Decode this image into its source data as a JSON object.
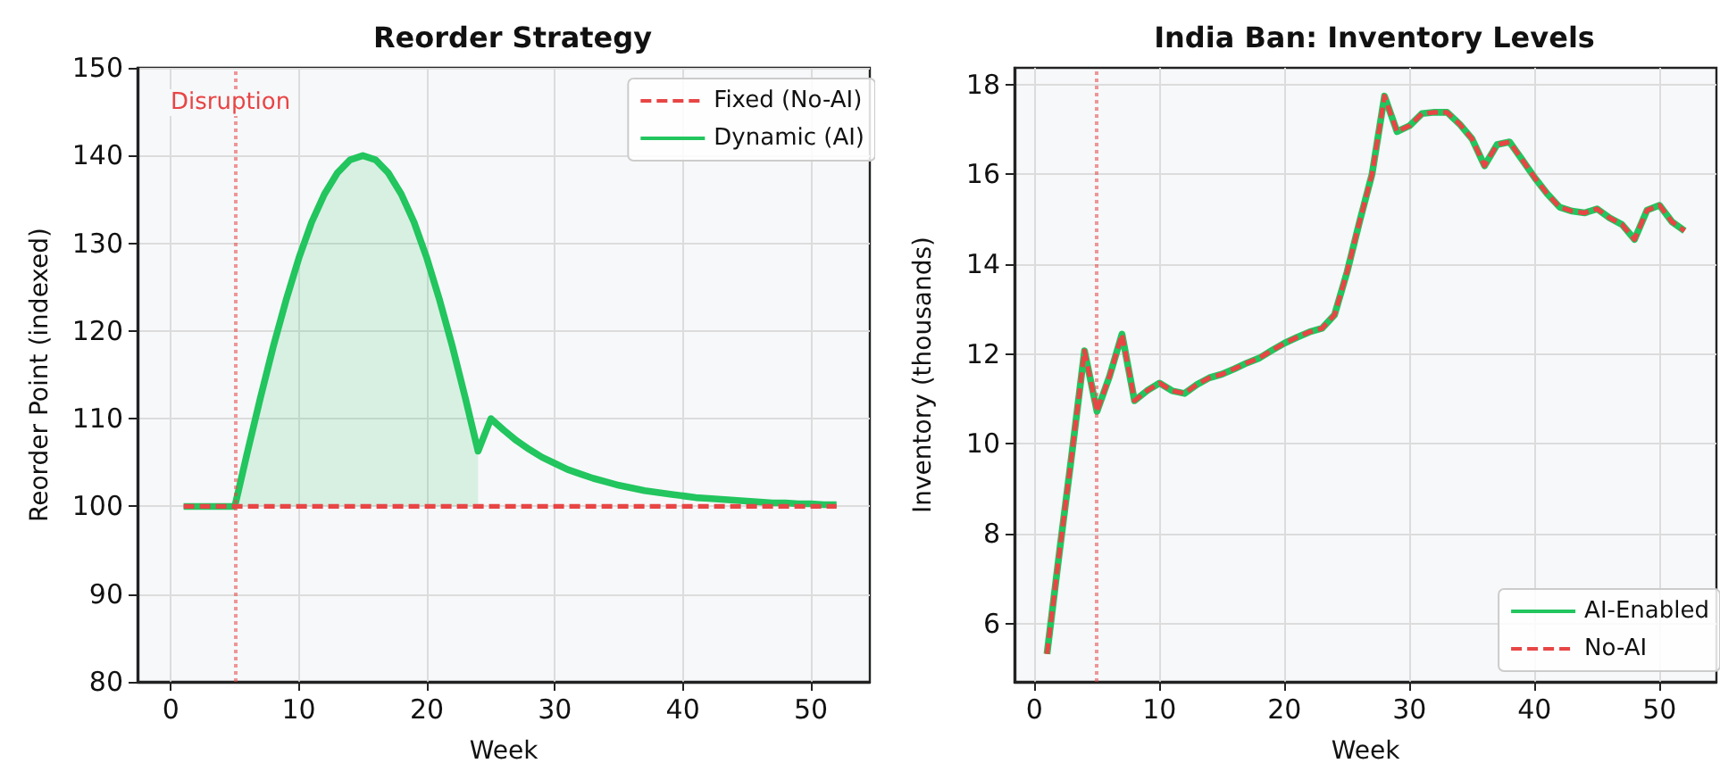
{
  "chart_data": [
    {
      "type": "line",
      "title": "Reorder Strategy",
      "xlabel": "Week",
      "ylabel": "Reorder Point (indexed)",
      "x": [
        1,
        2,
        3,
        4,
        5,
        6,
        7,
        8,
        9,
        10,
        11,
        12,
        13,
        14,
        15,
        16,
        17,
        18,
        19,
        20,
        21,
        22,
        23,
        24,
        25,
        26,
        27,
        28,
        29,
        30,
        31,
        32,
        33,
        34,
        35,
        36,
        37,
        38,
        39,
        40,
        41,
        42,
        43,
        44,
        45,
        46,
        47,
        48,
        49,
        50,
        51,
        52
      ],
      "series": [
        {
          "name": "Fixed (No-AI)",
          "color": "#e84545",
          "line_style": "dashed",
          "values": [
            100,
            100,
            100,
            100,
            100,
            100,
            100,
            100,
            100,
            100,
            100,
            100,
            100,
            100,
            100,
            100,
            100,
            100,
            100,
            100,
            100,
            100,
            100,
            100,
            100,
            100,
            100,
            100,
            100,
            100,
            100,
            100,
            100,
            100,
            100,
            100,
            100,
            100,
            100,
            100,
            100,
            100,
            100,
            100,
            100,
            100,
            100,
            100,
            100,
            100,
            100,
            100
          ]
        },
        {
          "name": "Dynamic (AI)",
          "color": "#22c55e",
          "line_style": "solid",
          "values": [
            100,
            100,
            100,
            100,
            100,
            106.3,
            112.4,
            118.2,
            123.5,
            128.3,
            132.4,
            135.6,
            138,
            139.5,
            140,
            139.5,
            138,
            135.6,
            132.4,
            128.3,
            123.5,
            118.2,
            112.4,
            106.3,
            110,
            108.7,
            107.5,
            106.5,
            105.6,
            104.9,
            104.2,
            103.7,
            103.2,
            102.8,
            102.4,
            102.1,
            101.8,
            101.6,
            101.4,
            101.2,
            101,
            100.9,
            100.8,
            100.7,
            100.6,
            100.5,
            100.4,
            100.4,
            100.3,
            100.3,
            100.2,
            100.2
          ]
        },
        {
          "type": "area",
          "color": "#22c55e",
          "x": [
            5,
            6,
            7,
            8,
            9,
            10,
            11,
            12,
            13,
            14,
            15,
            16,
            17,
            18,
            19,
            20,
            21,
            22,
            23,
            24
          ],
          "values": [
            100,
            106.3,
            112.4,
            118.2,
            123.5,
            128.3,
            132.4,
            135.6,
            138,
            139.5,
            140,
            139.5,
            138,
            135.6,
            132.4,
            128.3,
            123.5,
            118.2,
            112.4,
            106.3
          ]
        }
      ],
      "xlim": [
        -2.6,
        54.6
      ],
      "xticks": [
        0,
        10,
        20,
        30,
        40,
        50
      ],
      "ylim": [
        80,
        150
      ],
      "yticks": [
        80,
        90,
        100,
        110,
        120,
        130,
        140,
        150
      ],
      "ref_lines": [
        {
          "axis": "x",
          "value": 5,
          "label": "Disruption",
          "color": "#e84545",
          "line_style": "dotted"
        }
      ],
      "grid": true,
      "legend": "top right",
      "marker": "none"
    },
    {
      "type": "line",
      "title": "India Ban: Inventory Levels",
      "xlabel": "Week",
      "ylabel": "Inventory (thousands)",
      "x": [
        1,
        2,
        3,
        4,
        5,
        6,
        7,
        8,
        9,
        10,
        11,
        12,
        13,
        14,
        15,
        16,
        17,
        18,
        19,
        20,
        21,
        22,
        23,
        24,
        25,
        26,
        27,
        28,
        29,
        30,
        31,
        32,
        33,
        34,
        35,
        36,
        37,
        38,
        39,
        40,
        41,
        42,
        43,
        44,
        45,
        46,
        47,
        48,
        49,
        50,
        51,
        52
      ],
      "series": [
        {
          "name": "AI-Enabled",
          "color": "#22c55e",
          "line_style": "solid",
          "values": [
            5.32,
            7.6,
            9.8,
            12.07,
            10.72,
            11.5,
            12.44,
            10.96,
            11.18,
            11.35,
            11.18,
            11.12,
            11.32,
            11.47,
            11.55,
            11.67,
            11.8,
            11.91,
            12.08,
            12.24,
            12.37,
            12.49,
            12.57,
            12.87,
            13.82,
            14.94,
            16,
            17.74,
            16.95,
            17.08,
            17.35,
            17.38,
            17.38,
            17.12,
            16.79,
            16.19,
            16.66,
            16.72,
            16.33,
            15.93,
            15.57,
            15.27,
            15.18,
            15.14,
            15.23,
            15.03,
            14.88,
            14.55,
            15.2,
            15.31,
            14.94,
            14.74
          ]
        },
        {
          "name": "No-AI",
          "color": "#e84545",
          "line_style": "dashed",
          "values": [
            5.32,
            7.6,
            9.8,
            12.07,
            10.72,
            11.5,
            12.44,
            10.96,
            11.18,
            11.35,
            11.18,
            11.12,
            11.32,
            11.47,
            11.55,
            11.67,
            11.8,
            11.91,
            12.08,
            12.24,
            12.37,
            12.49,
            12.57,
            12.87,
            13.82,
            14.94,
            16,
            17.74,
            16.95,
            17.08,
            17.35,
            17.38,
            17.38,
            17.12,
            16.79,
            16.19,
            16.66,
            16.72,
            16.33,
            15.93,
            15.57,
            15.27,
            15.18,
            15.14,
            15.23,
            15.03,
            14.88,
            14.55,
            15.2,
            15.31,
            14.94,
            14.74
          ]
        }
      ],
      "xlim": [
        -1.6,
        54.55
      ],
      "xticks": [
        0,
        10,
        20,
        30,
        40,
        50
      ],
      "ylim": [
        4.7,
        18.37
      ],
      "yticks": [
        6,
        8,
        10,
        12,
        14,
        16,
        18
      ],
      "ref_lines": [
        {
          "axis": "x",
          "value": 5,
          "color": "#e84545",
          "line_style": "dotted"
        }
      ],
      "grid": true,
      "legend": "bottom right",
      "marker": "none"
    }
  ]
}
